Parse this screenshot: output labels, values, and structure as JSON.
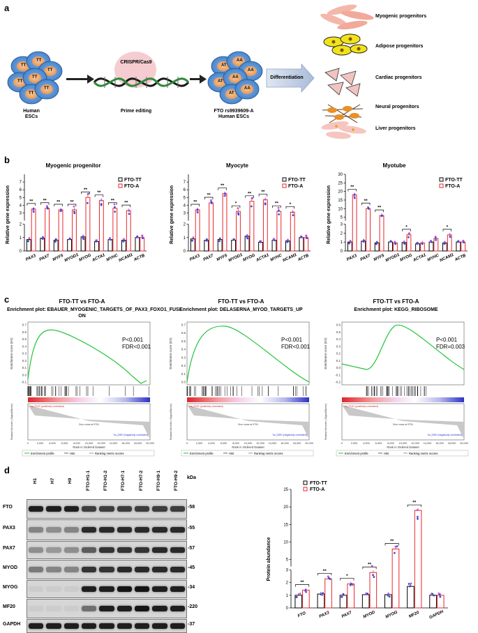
{
  "panel_a": {
    "letter": "a",
    "cells_left_label": "Human\nESCs",
    "crispr_label": "CRISPR/Cas9",
    "prime_label": "Prime editing",
    "cells_right_label": "FTO rs9939609-A\nHuman ESCs",
    "diff_label": "Differentiation",
    "cell_tt": "TT",
    "cell_at": "AT",
    "cell_aa": "AA",
    "progenitors": [
      "Myogenic progenitors",
      "Adipose progenitors",
      "Cardiac progenitors",
      "Neural progenitors",
      "Liver progenitors"
    ]
  },
  "panel_b": {
    "letter": "b",
    "ylabel": "Relative gene expression",
    "legend": [
      "FTO-TT",
      "FTO-A"
    ],
    "colors": {
      "tt": "#000000",
      "a": "#e8262c",
      "dot_blue": "#3a4bd6",
      "dot_pink": "#d04cd6"
    },
    "chart_data": [
      {
        "type": "bar",
        "title": "Myogenic progenitor",
        "categories": [
          "PAX3",
          "PAX7",
          "MYF5",
          "MYOD1",
          "MYOG",
          "ACTA1",
          "MYHC",
          "NCAM1",
          "ACTB"
        ],
        "axis_break": true,
        "ylim_low": [
          0,
          2
        ],
        "yticks_low": [
          0,
          1,
          2
        ],
        "ylim_high": [
          2,
          8
        ],
        "yticks_high": [
          3,
          4,
          5,
          6,
          7
        ],
        "series": [
          {
            "name": "FTO-TT",
            "values": [
              0.85,
              0.95,
              0.8,
              0.85,
              1.05,
              0.7,
              0.85,
              0.8,
              1.0
            ]
          },
          {
            "name": "FTO-A",
            "values": [
              3.5,
              3.6,
              3.4,
              3.4,
              5.0,
              4.6,
              3.6,
              3.3,
              1.0
            ]
          }
        ],
        "significance": [
          "**",
          "**",
          "**",
          "**",
          "**",
          "**",
          "**",
          "**",
          ""
        ]
      },
      {
        "type": "bar",
        "title": "Myocyte",
        "categories": [
          "PAX3",
          "PAX7",
          "MYF5",
          "MYOD1",
          "MYOG",
          "ACTA1",
          "MYHC",
          "NCAM1",
          "ACTB"
        ],
        "axis_break": true,
        "ylim_low": [
          0,
          2
        ],
        "yticks_low": [
          0,
          1,
          2
        ],
        "ylim_high": [
          2,
          8
        ],
        "yticks_high": [
          3,
          4,
          5,
          6,
          7
        ],
        "series": [
          {
            "name": "FTO-TT",
            "values": [
              0.9,
              0.8,
              0.85,
              0.8,
              1.1,
              0.65,
              0.8,
              0.75,
              1.0
            ]
          },
          {
            "name": "FTO-A",
            "values": [
              3.4,
              4.3,
              5.5,
              3.2,
              4.5,
              4.7,
              3.2,
              3.1,
              1.0
            ]
          }
        ],
        "significance": [
          "**",
          "**",
          "**",
          "*",
          "**",
          "**",
          "**",
          "*",
          ""
        ]
      },
      {
        "type": "bar",
        "title": "Myotube",
        "categories": [
          "PAX3",
          "PAX7",
          "MYF5",
          "MYOD1",
          "MYOG",
          "ACTA1",
          "MYHC",
          "NCAM1",
          "ACTB"
        ],
        "axis_break": true,
        "ylim_low": [
          0,
          3
        ],
        "yticks_low": [
          0,
          1,
          2,
          3
        ],
        "ylim_high": [
          3,
          30
        ],
        "yticks_high": [
          5,
          10,
          15,
          20,
          25,
          30
        ],
        "series": [
          {
            "name": "FTO-TT",
            "values": [
              1.0,
              1.1,
              0.9,
              1.0,
              0.95,
              0.8,
              1.0,
              0.9,
              1.0
            ]
          },
          {
            "name": "FTO-A",
            "values": [
              18,
              10,
              6,
              0.9,
              1.8,
              0.9,
              1.4,
              1.8,
              1.0
            ]
          }
        ],
        "significance": [
          "**",
          "**",
          "**",
          "",
          "*",
          "",
          "",
          "*",
          ""
        ]
      }
    ]
  },
  "panel_c": {
    "letter": "c",
    "plots": [
      {
        "comparison": "FTO-TT vs FTO-A",
        "title": "Enrichment plot: EBAUER_MYOGENIC_TARGETS_OF_PAX3_FOXO1_FUSI\nON",
        "p": "P<0.001",
        "fdr": "FDR<0.001",
        "yticks": [
          "0.7",
          "0.6",
          "0.5",
          "0.4",
          "0.3",
          "0.2",
          "0.1",
          "0.0",
          "-0.1"
        ]
      },
      {
        "comparison": "FTO-TT vs FTO-A",
        "title": "Enrichment plot: DELASERNA_MYOD_TARGETS_UP",
        "p": "P<0.001",
        "fdr": "FDR<0.001",
        "yticks": [
          "0.7",
          "0.6",
          "0.5",
          "0.4",
          "0.3",
          "0.2",
          "0.1",
          "0.0"
        ]
      },
      {
        "comparison": "FTO-TT vs FTO-A",
        "title": "Enrichment plot: KEGG_RIBOSOME",
        "p": "P<0.001",
        "fdr": "FDR=0.003",
        "yticks": [
          "0.6",
          "0.5",
          "0.4",
          "0.3",
          "0.2",
          "0.1",
          "0.0",
          "-0.1",
          "-0.2"
        ]
      }
    ],
    "es_label": "Enrichment score (ES)",
    "metric_label": "Ranked list metric (Signal2Noise)",
    "xlabel": "Rank in Ordered Dataset",
    "xticks": [
      "0",
      "2,000",
      "4,000",
      "6,000",
      "8,000",
      "10,000",
      "12,000",
      "14,000",
      "16,000",
      "18,000",
      "20,000"
    ],
    "pos_label": "'na_POS' (positively correlated)",
    "neg_label": "'hs_DSB' (negatively correlated)",
    "zero_cross": "Zero cross at 9751",
    "legend": [
      "Enrichment profile",
      "Hits",
      "Ranking metric scores"
    ]
  },
  "panel_d": {
    "letter": "d",
    "lanes": [
      "H1",
      "H7",
      "H9",
      "FTO-H1-1",
      "FTO-H1-2",
      "FTO-H7-1",
      "FTO-H7-2",
      "FTO-H9-1",
      "FTO-H9-2"
    ],
    "kda_label": "kDa",
    "blots": [
      {
        "protein": "FTO",
        "kda": "-58"
      },
      {
        "protein": "PAX3",
        "kda": "-55"
      },
      {
        "protein": "PAX7",
        "kda": "-57"
      },
      {
        "protein": "MYOD",
        "kda": "-45"
      },
      {
        "protein": "MYOG",
        "kda": "-34"
      },
      {
        "protein": "MF20",
        "kda": "-220"
      },
      {
        "protein": "GAPDH",
        "kda": "-37"
      }
    ],
    "ylabel": "Protein abundance",
    "legend": [
      "FTO-TT",
      "FTO-A"
    ],
    "chart_data": {
      "type": "bar",
      "categories": [
        "FTO",
        "PAX3",
        "PAX7",
        "MYOD",
        "MYOG",
        "MF20",
        "GAPDH"
      ],
      "axis_break": true,
      "ylim_low": [
        0,
        3
      ],
      "yticks_low": [
        0,
        1,
        2,
        3
      ],
      "ylim_high": [
        3,
        25
      ],
      "yticks_high": [
        5,
        10,
        15,
        20,
        25
      ],
      "series": [
        {
          "name": "FTO-TT",
          "values": [
            1.0,
            1.1,
            1.0,
            1.05,
            1.05,
            1.7,
            1.0
          ]
        },
        {
          "name": "FTO-A",
          "values": [
            1.4,
            2.3,
            1.9,
            2.8,
            8.0,
            19.0,
            1.0
          ]
        }
      ],
      "significance": [
        "**",
        "**",
        "*",
        "**",
        "**",
        "**",
        ""
      ]
    }
  }
}
